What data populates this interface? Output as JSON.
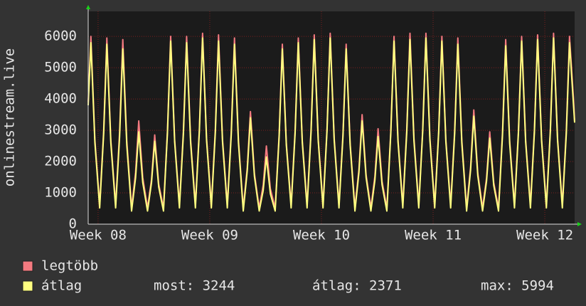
{
  "chart_data": {
    "type": "line",
    "y_label": "onlinestream.live",
    "xlim": [
      -0.62,
      29.87
    ],
    "xticks": [
      {
        "value": 0,
        "label": "Week 08"
      },
      {
        "value": 7,
        "label": "Week 09"
      },
      {
        "value": 14,
        "label": "Week 10"
      },
      {
        "value": 21,
        "label": "Week 11"
      },
      {
        "value": 28,
        "label": "Week 12"
      }
    ],
    "ylim": [
      0,
      6800
    ],
    "yticks": [
      0,
      1000,
      2000,
      3000,
      4000,
      5000,
      6000
    ],
    "grid": true,
    "x": [
      -0.62,
      -0.45,
      -0.2,
      0.1,
      0.35,
      0.55,
      0.8,
      1.1,
      1.35,
      1.55,
      1.8,
      2.1,
      2.35,
      2.55,
      2.8,
      3.1,
      3.35,
      3.55,
      3.8,
      4.1,
      4.35,
      4.55,
      4.8,
      5.1,
      5.35,
      5.55,
      5.8,
      6.1,
      6.35,
      6.55,
      6.8,
      7.1,
      7.35,
      7.55,
      7.8,
      8.1,
      8.35,
      8.55,
      8.8,
      9.1,
      9.35,
      9.55,
      9.8,
      10.1,
      10.35,
      10.55,
      10.8,
      11.1,
      11.35,
      11.55,
      11.8,
      12.1,
      12.35,
      12.55,
      12.8,
      13.1,
      13.35,
      13.55,
      13.8,
      14.1,
      14.35,
      14.55,
      14.8,
      15.1,
      15.35,
      15.55,
      15.8,
      16.1,
      16.35,
      16.55,
      16.8,
      17.1,
      17.35,
      17.55,
      17.8,
      18.1,
      18.35,
      18.55,
      18.8,
      19.1,
      19.35,
      19.55,
      19.8,
      20.1,
      20.35,
      20.55,
      20.8,
      21.1,
      21.35,
      21.55,
      21.8,
      22.1,
      22.35,
      22.55,
      22.8,
      23.1,
      23.35,
      23.55,
      23.8,
      24.1,
      24.35,
      24.55,
      24.8,
      25.1,
      25.35,
      25.55,
      25.8,
      26.1,
      26.35,
      26.55,
      26.8,
      27.1,
      27.35,
      27.55,
      27.8,
      28.1,
      28.35,
      28.55,
      28.8,
      29.1,
      29.35,
      29.55,
      29.8,
      29.87
    ],
    "series": [
      {
        "name": "legtöbb",
        "color": "#f47a80",
        "values": [
          3900,
          6000,
          2700,
          620,
          2980,
          5950,
          2680,
          620,
          2950,
          5900,
          2660,
          520,
          1650,
          3300,
          1490,
          520,
          1430,
          2850,
          1280,
          520,
          3000,
          6000,
          2700,
          620,
          3000,
          6000,
          2700,
          620,
          3050,
          6100,
          2750,
          620,
          3030,
          6050,
          2720,
          620,
          2980,
          5950,
          2680,
          520,
          1800,
          3600,
          1620,
          520,
          1250,
          2500,
          1130,
          520,
          2880,
          5750,
          2590,
          620,
          2980,
          5950,
          2680,
          620,
          3030,
          6050,
          2720,
          620,
          3050,
          6100,
          2750,
          620,
          2880,
          5750,
          2590,
          520,
          1750,
          3500,
          1580,
          520,
          1530,
          3050,
          1370,
          520,
          3000,
          6000,
          2700,
          620,
          3050,
          6100,
          2750,
          620,
          3050,
          6100,
          2750,
          620,
          3000,
          6000,
          2700,
          620,
          2980,
          5950,
          2680,
          520,
          1830,
          3650,
          1640,
          520,
          1480,
          2950,
          1330,
          520,
          2950,
          5900,
          2660,
          620,
          3000,
          6000,
          2700,
          620,
          3030,
          6050,
          2720,
          620,
          3050,
          6100,
          2750,
          620,
          3000,
          6000,
          4000,
          3300
        ]
      },
      {
        "name": "átlag",
        "color": "#ffff80",
        "values": [
          3800,
          5800,
          2610,
          520,
          2880,
          5750,
          2590,
          520,
          2800,
          5600,
          2520,
          420,
          1480,
          2950,
          1330,
          420,
          1330,
          2650,
          1190,
          420,
          2930,
          5850,
          2630,
          520,
          2900,
          5800,
          2610,
          520,
          2980,
          5950,
          2680,
          520,
          2930,
          5850,
          2630,
          520,
          2880,
          5750,
          2590,
          420,
          1700,
          3400,
          1530,
          420,
          1080,
          2150,
          970,
          420,
          2800,
          5600,
          2520,
          520,
          2900,
          5800,
          2610,
          520,
          2950,
          5900,
          2660,
          520,
          2980,
          5950,
          2680,
          520,
          2800,
          5600,
          2520,
          420,
          1650,
          3300,
          1490,
          420,
          1400,
          2800,
          1260,
          420,
          2930,
          5850,
          2630,
          520,
          2950,
          5900,
          2660,
          520,
          2980,
          5950,
          2680,
          520,
          2930,
          5850,
          2630,
          520,
          2880,
          5750,
          2590,
          420,
          1730,
          3450,
          1550,
          420,
          1380,
          2750,
          1240,
          420,
          2850,
          5700,
          2570,
          520,
          2930,
          5850,
          2630,
          520,
          2950,
          5900,
          2660,
          520,
          2980,
          5950,
          2680,
          520,
          2900,
          5800,
          3800,
          3244
        ]
      }
    ],
    "stats": [
      {
        "label": "most:",
        "value": 3244
      },
      {
        "label": "átlag:",
        "value": 2371
      },
      {
        "label": "max:",
        "value": 5994
      }
    ]
  }
}
